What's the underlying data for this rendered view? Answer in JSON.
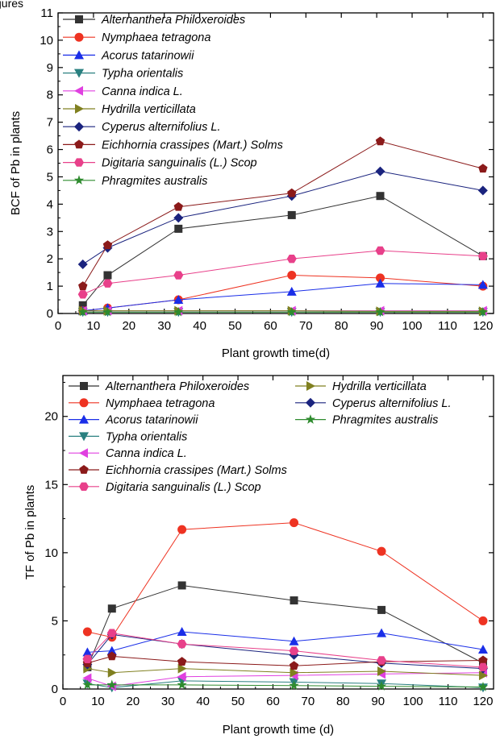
{
  "top_fragment_text": "gures",
  "chart_data": [
    {
      "type": "line",
      "xlabel": "Plant growth time(d)",
      "ylabel": "BCF of Pb in plants",
      "xlim": [
        0,
        123
      ],
      "ylim": [
        0,
        11
      ],
      "xticks": [
        0,
        10,
        20,
        30,
        40,
        50,
        60,
        70,
        80,
        90,
        100,
        110,
        120
      ],
      "yticks": [
        0,
        1,
        2,
        3,
        4,
        5,
        6,
        7,
        8,
        9,
        10,
        11
      ],
      "grid": false,
      "legend_placement": "top-left, single column",
      "x": [
        7,
        14,
        34,
        66,
        91,
        120
      ],
      "series": [
        {
          "name": "Alternanthera Philoxeroides",
          "color": "#333333",
          "marker": "square",
          "values": [
            0.3,
            1.4,
            3.1,
            3.6,
            4.3,
            2.1
          ]
        },
        {
          "name": "Nymphaea tetragona",
          "color": "#ee3322",
          "marker": "circle",
          "values": [
            0.1,
            0.2,
            0.5,
            1.4,
            1.3,
            1.0
          ]
        },
        {
          "name": "Acorus tatarinowii",
          "color": "#1a2ee8",
          "marker": "triangle-up",
          "values": [
            0.1,
            0.2,
            0.5,
            0.8,
            1.1,
            1.05
          ]
        },
        {
          "name": "Typha orientalis",
          "color": "#2a8080",
          "marker": "triangle-down",
          "values": [
            0.05,
            0.05,
            0.05,
            0.05,
            0.05,
            0.05
          ]
        },
        {
          "name": "Canna indica L.",
          "color": "#e040e0",
          "marker": "triangle-left",
          "values": [
            0.1,
            0.1,
            0.1,
            0.1,
            0.1,
            0.1
          ]
        },
        {
          "name": "Hydrilla verticillata",
          "color": "#808020",
          "marker": "triangle-right",
          "values": [
            0.1,
            0.1,
            0.1,
            0.1,
            0.08,
            0.08
          ]
        },
        {
          "name": "Cyperus alternifolius L.",
          "color": "#1a237e",
          "marker": "diamond",
          "values": [
            1.8,
            2.4,
            3.5,
            4.3,
            5.2,
            4.5
          ]
        },
        {
          "name": "Eichhornia crassipes (Mart.) Solms",
          "color": "#8b1a1a",
          "marker": "pentagon",
          "values": [
            1.0,
            2.5,
            3.9,
            4.4,
            6.3,
            5.3
          ]
        },
        {
          "name": "Digitaria sanguinalis (L.) Scop",
          "color": "#e8408a",
          "marker": "hexagon",
          "values": [
            0.7,
            1.1,
            1.4,
            2.0,
            2.3,
            2.1
          ]
        },
        {
          "name": "Phragmites australis",
          "color": "#2e8b2e",
          "marker": "star",
          "values": [
            0.05,
            0.05,
            0.05,
            0.05,
            0.05,
            0.05
          ]
        }
      ]
    },
    {
      "type": "line",
      "xlabel": "Plant growth time (d)",
      "ylabel": "TF of Pb in plants",
      "xlim": [
        0,
        123
      ],
      "ylim": [
        0,
        23
      ],
      "xticks": [
        0,
        10,
        20,
        30,
        40,
        50,
        60,
        70,
        80,
        90,
        100,
        110,
        120
      ],
      "yticks": [
        0,
        5,
        10,
        15,
        20
      ],
      "grid": false,
      "legend_placement": "top, two columns",
      "x": [
        7,
        14,
        34,
        66,
        91,
        120
      ],
      "series": [
        {
          "name": "Alternanthera Philoxeroides",
          "color": "#333333",
          "marker": "square",
          "values": [
            1.6,
            5.9,
            7.6,
            6.5,
            5.8,
            1.9
          ]
        },
        {
          "name": "Nymphaea tetragona",
          "color": "#ee3322",
          "marker": "circle",
          "values": [
            4.2,
            3.8,
            11.7,
            12.2,
            10.1,
            5.0
          ]
        },
        {
          "name": "Acorus tatarinowii",
          "color": "#1a2ee8",
          "marker": "triangle-up",
          "values": [
            2.7,
            2.8,
            4.2,
            3.5,
            4.1,
            2.9
          ]
        },
        {
          "name": "Typha orientalis",
          "color": "#2a8080",
          "marker": "triangle-down",
          "values": [
            0.4,
            0.1,
            0.6,
            0.5,
            0.4,
            0.1
          ]
        },
        {
          "name": "Canna indica L.",
          "color": "#e040e0",
          "marker": "triangle-left",
          "values": [
            0.8,
            0.2,
            0.9,
            1.0,
            1.1,
            1.2
          ]
        },
        {
          "name": "Hydrilla verticillata",
          "color": "#808020",
          "marker": "triangle-right",
          "values": [
            1.5,
            1.2,
            1.5,
            1.2,
            1.3,
            1.0
          ]
        },
        {
          "name": "Cyperus alternifolius L.",
          "color": "#1a237e",
          "marker": "diamond",
          "values": [
            1.8,
            4.0,
            3.3,
            2.5,
            1.9,
            1.5
          ]
        },
        {
          "name": "Eichhornia crassipes (Mart.) Solms",
          "color": "#8b1a1a",
          "marker": "pentagon",
          "values": [
            1.9,
            2.4,
            2.0,
            1.7,
            2.0,
            2.1
          ]
        },
        {
          "name": "Digitaria sanguinalis (L.) Scop",
          "color": "#e8408a",
          "marker": "hexagon",
          "values": [
            2.2,
            4.1,
            3.3,
            2.8,
            2.1,
            1.6
          ]
        },
        {
          "name": "Phragmites australis",
          "color": "#2e8b2e",
          "marker": "star",
          "values": [
            0.3,
            0.3,
            0.3,
            0.25,
            0.2,
            0.15
          ]
        }
      ]
    }
  ]
}
